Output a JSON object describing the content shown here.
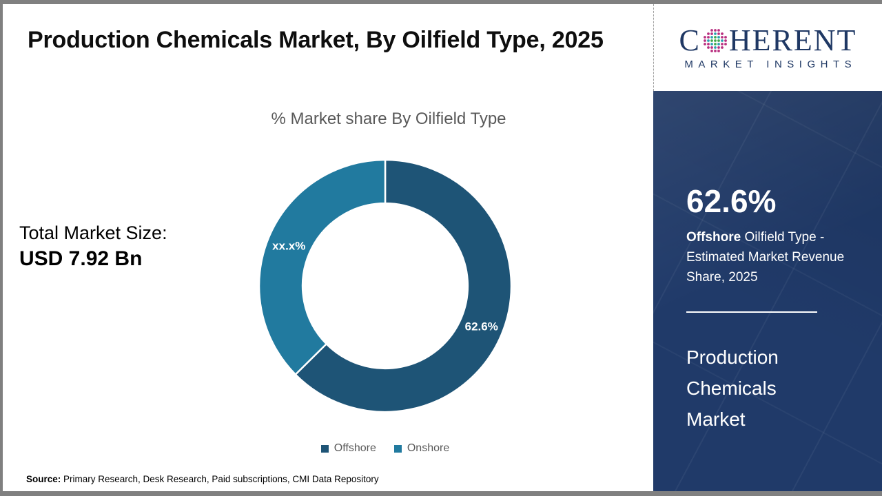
{
  "page": {
    "title": "Production Chemicals Market, By Oilfield Type, 2025",
    "source_label": "Source:",
    "source_text": " Primary Research, Desk Research, Paid subscriptions, CMI Data Repository",
    "border_color": "#808080"
  },
  "total_market": {
    "label": "Total Market Size:",
    "value": "USD 7.92 Bn"
  },
  "chart_data": {
    "type": "pie",
    "donut": true,
    "title": "% Market share By Oilfield Type",
    "start_angle_deg": -90,
    "direction": "clockwise",
    "inner_radius_ratio": 0.655,
    "slices": [
      {
        "name": "Offshore",
        "value": 62.6,
        "label": "62.6%",
        "color": "#1e5476"
      },
      {
        "name": "Onshore",
        "value": 37.4,
        "label": "xx.x%",
        "color": "#217a9f"
      }
    ],
    "legend_position": "bottom"
  },
  "sidebar": {
    "logo": {
      "brand_first_letter": "C",
      "brand_rest": "HERENT",
      "subtitle": "MARKET INSIGHTS",
      "navy": "#1f3864",
      "globe_colors": {
        "green": "#3fa94c",
        "teal": "#2aa2b0",
        "magenta": "#b93080"
      }
    },
    "panel_color": "#203a69",
    "stat_value": "62.6%",
    "stat_desc_bold": "Offshore",
    "stat_desc_rest": " Oilfield Type - Estimated Market Revenue Share, 2025",
    "market_name": "Production Chemicals Market"
  }
}
